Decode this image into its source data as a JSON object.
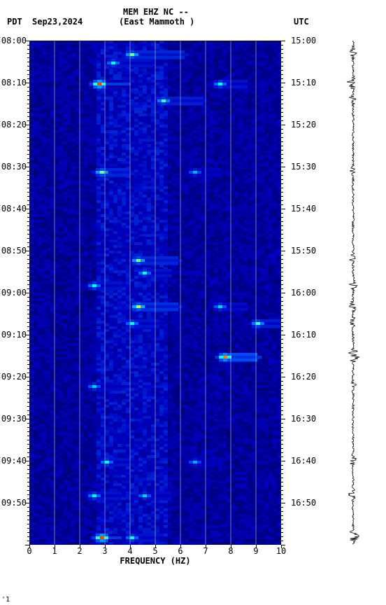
{
  "header": {
    "tz_left": "PDT",
    "date": "Sep23,2024",
    "station_line1": "MEM EHZ NC --",
    "station_line2": "(East Mammoth )",
    "tz_right": "UTC"
  },
  "spectrogram": {
    "type": "spectrogram",
    "x_axis": {
      "title": "FREQUENCY (HZ)",
      "min": 0,
      "max": 10,
      "ticks": [
        0,
        1,
        2,
        3,
        4,
        5,
        6,
        7,
        8,
        9,
        10
      ]
    },
    "y_axis_left": {
      "label": "PDT",
      "ticks": [
        "08:00",
        "08:10",
        "08:20",
        "08:30",
        "08:40",
        "08:50",
        "09:00",
        "09:10",
        "09:20",
        "09:30",
        "09:40",
        "09:50"
      ],
      "minor_step_min": 1
    },
    "y_axis_right": {
      "label": "UTC",
      "ticks": [
        "15:00",
        "15:10",
        "15:20",
        "15:30",
        "15:40",
        "15:50",
        "16:00",
        "16:10",
        "16:20",
        "16:30",
        "16:40",
        "16:50"
      ]
    },
    "time_range_minutes": 120,
    "background_color": "#0000a0",
    "gridline_color": "#c0c0c0",
    "colormap_stops": [
      {
        "v": 0.0,
        "c": "#000060"
      },
      {
        "v": 0.2,
        "c": "#0000c0"
      },
      {
        "v": 0.4,
        "c": "#0060ff"
      },
      {
        "v": 0.6,
        "c": "#00ffff"
      },
      {
        "v": 0.8,
        "c": "#ffff00"
      },
      {
        "v": 1.0,
        "c": "#ff0000"
      }
    ],
    "hot_events": [
      {
        "t_min": 3,
        "f": 5,
        "intensity": 0.7,
        "w": 2
      },
      {
        "t_min": 5,
        "f": 4,
        "intensity": 0.6,
        "w": 1.5
      },
      {
        "t_min": 10,
        "f": 3.2,
        "intensity": 0.95,
        "w": 1
      },
      {
        "t_min": 10,
        "f": 8,
        "intensity": 0.6,
        "w": 1
      },
      {
        "t_min": 14,
        "f": 6,
        "intensity": 0.65,
        "w": 1.5
      },
      {
        "t_min": 31,
        "f": 3.3,
        "intensity": 0.7,
        "w": 1
      },
      {
        "t_min": 31,
        "f": 7,
        "intensity": 0.5,
        "w": 1
      },
      {
        "t_min": 52,
        "f": 5,
        "intensity": 0.7,
        "w": 1.5
      },
      {
        "t_min": 55,
        "f": 5,
        "intensity": 0.6,
        "w": 1
      },
      {
        "t_min": 58,
        "f": 3,
        "intensity": 0.6,
        "w": 1
      },
      {
        "t_min": 63,
        "f": 5,
        "intensity": 0.75,
        "w": 1.5
      },
      {
        "t_min": 63,
        "f": 8,
        "intensity": 0.55,
        "w": 1
      },
      {
        "t_min": 67,
        "f": 4.5,
        "intensity": 0.6,
        "w": 1
      },
      {
        "t_min": 67,
        "f": 9.5,
        "intensity": 0.65,
        "w": 1
      },
      {
        "t_min": 75,
        "f": 8.3,
        "intensity": 0.9,
        "w": 1.2
      },
      {
        "t_min": 82,
        "f": 3,
        "intensity": 0.55,
        "w": 1
      },
      {
        "t_min": 100,
        "f": 3.5,
        "intensity": 0.6,
        "w": 1
      },
      {
        "t_min": 100,
        "f": 7,
        "intensity": 0.5,
        "w": 1
      },
      {
        "t_min": 108,
        "f": 3,
        "intensity": 0.6,
        "w": 1
      },
      {
        "t_min": 108,
        "f": 5,
        "intensity": 0.55,
        "w": 1
      },
      {
        "t_min": 118,
        "f": 3.3,
        "intensity": 0.95,
        "w": 1
      },
      {
        "t_min": 118,
        "f": 4.5,
        "intensity": 0.6,
        "w": 1
      }
    ]
  },
  "waveform": {
    "type": "seismogram",
    "color": "#000000",
    "baseline_amplitude": 1.5,
    "events": [
      {
        "t_min": 3,
        "amp": 6
      },
      {
        "t_min": 10,
        "amp": 12
      },
      {
        "t_min": 14,
        "amp": 7
      },
      {
        "t_min": 31,
        "amp": 5
      },
      {
        "t_min": 52,
        "amp": 6
      },
      {
        "t_min": 58,
        "amp": 7
      },
      {
        "t_min": 63,
        "amp": 8
      },
      {
        "t_min": 67,
        "amp": 6
      },
      {
        "t_min": 75,
        "amp": 14
      },
      {
        "t_min": 82,
        "amp": 5
      },
      {
        "t_min": 100,
        "amp": 7
      },
      {
        "t_min": 108,
        "amp": 8
      },
      {
        "t_min": 118,
        "amp": 10
      }
    ]
  },
  "footer_mark": "'1"
}
